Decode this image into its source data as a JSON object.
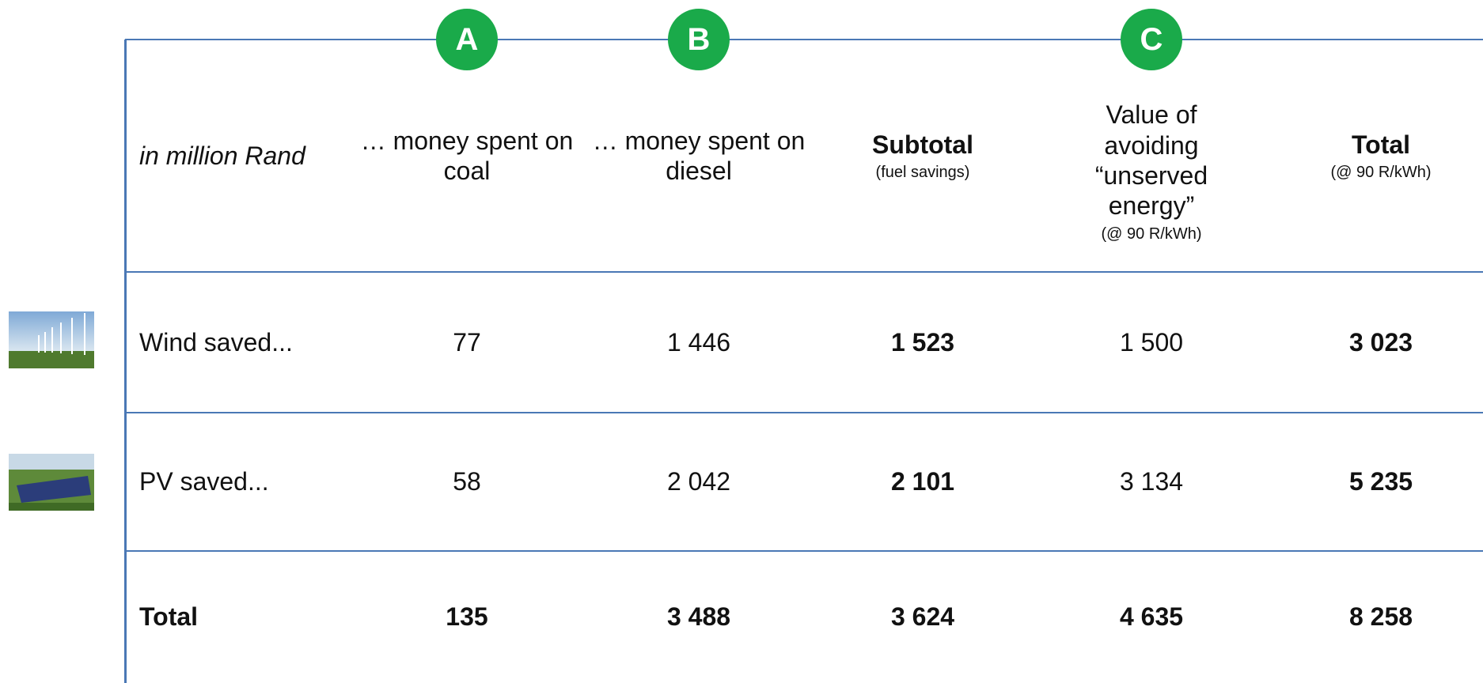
{
  "badges": [
    "A",
    "B",
    "C"
  ],
  "header": {
    "label": "in million Rand",
    "columns": [
      {
        "title": "… money spent on coal"
      },
      {
        "title": "… money spent on diesel"
      },
      {
        "title": "Subtotal",
        "note": "(fuel savings)"
      },
      {
        "title": "Value of avoiding “unserved energy”",
        "note": "(@ 90 R/kWh)"
      },
      {
        "title": "Total",
        "note": "(@ 90 R/kWh)"
      }
    ]
  },
  "rows": [
    {
      "label": "Wind  saved...",
      "cells": [
        "77",
        "1 446",
        "1 523",
        "1 500",
        "3 023"
      ]
    },
    {
      "label": "PV saved...",
      "cells": [
        "58",
        "2 042",
        "2 101",
        "3 134",
        "5 235"
      ]
    },
    {
      "label": "Total",
      "cells": [
        "135",
        "3 488",
        "3 624",
        "4 635",
        "8 258"
      ]
    }
  ]
}
